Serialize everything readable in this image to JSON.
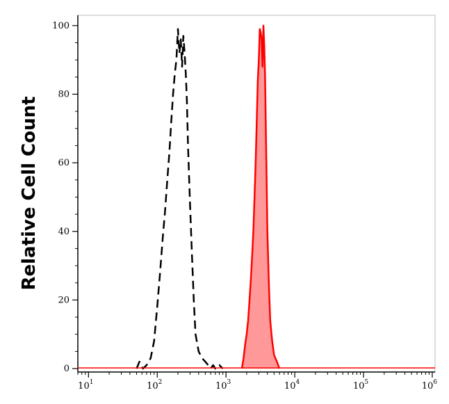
{
  "chart_data": {
    "type": "area",
    "title": "",
    "xlabel": "",
    "ylabel": "Relative Cell Count",
    "x_scale": "log",
    "xlim": [
      7,
      1100000
    ],
    "ylim": [
      -1,
      103
    ],
    "x_ticks": [
      {
        "base": "10",
        "exp": "1",
        "value": 10
      },
      {
        "base": "10",
        "exp": "2",
        "value": 100
      },
      {
        "base": "10",
        "exp": "3",
        "value": 1000
      },
      {
        "base": "10",
        "exp": "4",
        "value": 10000
      },
      {
        "base": "10",
        "exp": "5",
        "value": 100000
      },
      {
        "base": "10",
        "exp": "6",
        "value": 1000000
      }
    ],
    "y_ticks": [
      "0",
      "20",
      "40",
      "60",
      "80",
      "100"
    ],
    "grid": false,
    "legend": "none",
    "series": [
      {
        "style": "dashed",
        "color": "#000000",
        "filled": false,
        "x": [
          50,
          55,
          62,
          70,
          80,
          90,
          100,
          110,
          120,
          130,
          140,
          150,
          160,
          170,
          180,
          190,
          200,
          210,
          220,
          230,
          240,
          250,
          260,
          270,
          280,
          300,
          320,
          340,
          360,
          400,
          450,
          500,
          550,
          600,
          650,
          700,
          800,
          900
        ],
        "y": [
          0,
          2,
          0,
          1,
          3,
          8,
          18,
          28,
          38,
          46,
          55,
          63,
          72,
          80,
          86,
          90,
          99,
          92,
          96,
          88,
          97,
          92,
          86,
          78,
          65,
          48,
          33,
          20,
          10,
          5,
          3,
          2,
          1,
          0,
          1,
          0,
          1,
          0
        ]
      },
      {
        "style": "solid",
        "color": "#ff0000",
        "fill": "#ff9999",
        "filled": true,
        "x": [
          1700,
          1800,
          1900,
          2000,
          2100,
          2200,
          2300,
          2400,
          2500,
          2600,
          2700,
          2800,
          2900,
          3000,
          3100,
          3200,
          3300,
          3400,
          3500,
          3600,
          3700,
          3800,
          3900,
          4000,
          4200,
          4400,
          4700,
          5000,
          5500,
          6000
        ],
        "y": [
          0,
          3,
          7,
          10,
          14,
          20,
          26,
          33,
          40,
          50,
          60,
          72,
          84,
          90,
          99,
          98,
          96,
          88,
          100,
          94,
          85,
          70,
          55,
          40,
          25,
          14,
          8,
          4,
          2,
          0
        ]
      }
    ]
  }
}
